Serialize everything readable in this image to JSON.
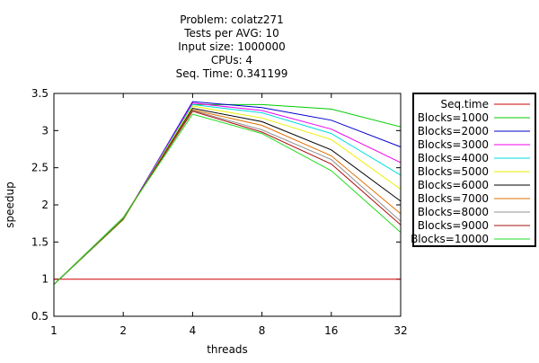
{
  "chart_data": {
    "type": "line",
    "title_lines": [
      "Problem: colatz271",
      "Tests per AVG: 10",
      "Input size: 1000000",
      "CPUs: 4",
      "Seq. Time: 0.341199"
    ],
    "xlabel": "threads",
    "ylabel": "speedup",
    "x": [
      "1",
      "2",
      "4",
      "8",
      "16",
      "32"
    ],
    "x_scale": "log2",
    "ylim": [
      0.5,
      3.5
    ],
    "yticks": [
      "0.5",
      "1",
      "1.5",
      "2",
      "2.5",
      "3",
      "3.5"
    ],
    "grid": false,
    "legend_position": "right",
    "series": [
      {
        "name": "Seq.time",
        "color": "#cc0000",
        "values": [
          1,
          1,
          1,
          1,
          1,
          1
        ]
      },
      {
        "name": "Blocks=1000",
        "color": "#00cc00",
        "values": [
          0.93,
          1.8,
          3.35,
          3.35,
          3.29,
          3.05
        ]
      },
      {
        "name": "Blocks=2000",
        "color": "#0000cc",
        "values": [
          0.93,
          1.8,
          3.39,
          3.31,
          3.14,
          2.78
        ]
      },
      {
        "name": "Blocks=3000",
        "color": "#ee00ee",
        "values": [
          0.93,
          1.8,
          3.37,
          3.27,
          3.02,
          2.57
        ]
      },
      {
        "name": "Blocks=4000",
        "color": "#00dddd",
        "values": [
          0.93,
          1.8,
          3.35,
          3.24,
          2.96,
          2.4
        ]
      },
      {
        "name": "Blocks=5000",
        "color": "#eeee00",
        "values": [
          0.93,
          1.8,
          3.33,
          3.17,
          2.88,
          2.21
        ]
      },
      {
        "name": "Blocks=6000",
        "color": "#000000",
        "values": [
          0.93,
          1.81,
          3.3,
          3.12,
          2.74,
          2.05
        ]
      },
      {
        "name": "Blocks=7000",
        "color": "#e07000",
        "values": [
          0.93,
          1.82,
          3.28,
          3.07,
          2.66,
          1.88
        ]
      },
      {
        "name": "Blocks=8000",
        "color": "#909090",
        "values": [
          0.93,
          1.82,
          3.27,
          3.01,
          2.61,
          1.78
        ]
      },
      {
        "name": "Blocks=9000",
        "color": "#aa1111",
        "values": [
          0.93,
          1.83,
          3.26,
          2.98,
          2.55,
          1.73
        ]
      },
      {
        "name": "Blocks=10000",
        "color": "#22dd22",
        "values": [
          0.93,
          1.83,
          3.22,
          2.96,
          2.46,
          1.63
        ]
      }
    ]
  }
}
